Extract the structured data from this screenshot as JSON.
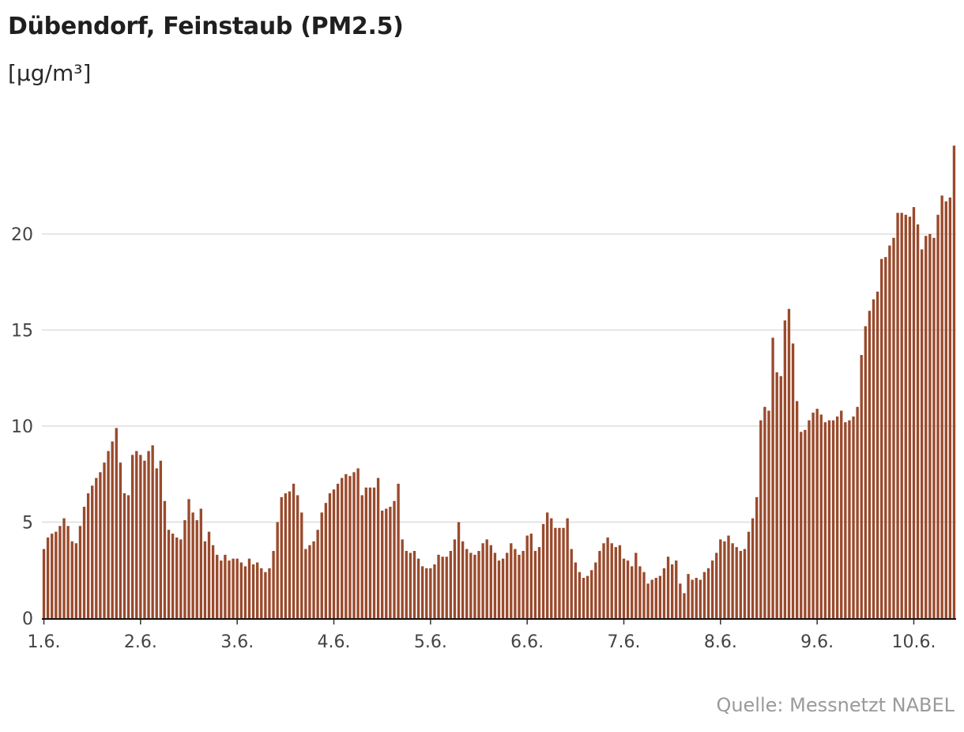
{
  "chart_data": {
    "type": "bar",
    "title": "Dübendorf, Feinstaub (PM2.5)",
    "ylabel": "[µg/m³]",
    "source": "Quelle: Messnetzt NABEL",
    "color": "#9a4a2c",
    "gridlines": true,
    "ylim": [
      0,
      24.5
    ],
    "yticks": [
      0,
      5,
      10,
      15,
      20
    ],
    "x_tick_labels": [
      "1.6.",
      "2.6.",
      "3.6.",
      "4.6.",
      "5.6.",
      "6.6.",
      "7.6.",
      "8.6.",
      "9.6.",
      "10.6."
    ],
    "bars_per_day": 24,
    "values": [
      3.6,
      4.2,
      4.4,
      4.5,
      4.8,
      5.2,
      4.8,
      4.0,
      3.9,
      4.8,
      5.8,
      6.5,
      6.9,
      7.3,
      7.6,
      8.1,
      8.7,
      9.2,
      9.9,
      8.1,
      6.5,
      6.4,
      8.5,
      8.7,
      8.5,
      8.2,
      8.7,
      9.0,
      7.8,
      8.2,
      6.1,
      4.6,
      4.4,
      4.2,
      4.1,
      5.1,
      6.2,
      5.5,
      5.1,
      5.7,
      4.0,
      4.5,
      3.8,
      3.3,
      3.0,
      3.3,
      3.0,
      3.1,
      3.1,
      2.9,
      2.7,
      3.1,
      2.8,
      2.9,
      2.6,
      2.4,
      2.6,
      3.5,
      5.0,
      6.3,
      6.5,
      6.6,
      7.0,
      6.4,
      5.5,
      3.6,
      3.8,
      4.0,
      4.6,
      5.5,
      6.0,
      6.5,
      6.7,
      7.0,
      7.3,
      7.5,
      7.4,
      7.6,
      7.8,
      6.4,
      6.8,
      6.8,
      6.8,
      7.3,
      5.6,
      5.7,
      5.8,
      6.1,
      7.0,
      4.1,
      3.5,
      3.4,
      3.5,
      3.1,
      2.7,
      2.6,
      2.6,
      2.8,
      3.3,
      3.2,
      3.2,
      3.5,
      4.1,
      5.0,
      4.0,
      3.6,
      3.4,
      3.3,
      3.5,
      3.9,
      4.1,
      3.8,
      3.4,
      3.0,
      3.1,
      3.4,
      3.9,
      3.6,
      3.3,
      3.5,
      4.3,
      4.4,
      3.5,
      3.7,
      4.9,
      5.5,
      5.2,
      4.7,
      4.7,
      4.7,
      5.2,
      3.6,
      2.9,
      2.4,
      2.1,
      2.2,
      2.5,
      2.9,
      3.5,
      3.9,
      4.2,
      3.9,
      3.7,
      3.8,
      3.1,
      3.0,
      2.7,
      3.4,
      2.7,
      2.4,
      1.8,
      2.0,
      2.1,
      2.2,
      2.6,
      3.2,
      2.8,
      3.0,
      1.8,
      1.3,
      2.3,
      2.0,
      2.1,
      2.0,
      2.4,
      2.6,
      3.0,
      3.4,
      4.1,
      4.0,
      4.3,
      3.9,
      3.7,
      3.5,
      3.6,
      4.5,
      5.2,
      6.3,
      10.3,
      11.0,
      10.8,
      14.6,
      12.8,
      12.6,
      15.5,
      16.1,
      14.3,
      11.3,
      9.7,
      9.8,
      10.3,
      10.7,
      10.9,
      10.6,
      10.2,
      10.3,
      10.3,
      10.5,
      10.8,
      10.2,
      10.3,
      10.5,
      11.0,
      13.7,
      15.2,
      16.0,
      16.6,
      17.0,
      18.7,
      18.8,
      19.4,
      19.8,
      21.1,
      21.1,
      21.0,
      20.9,
      21.4,
      20.5,
      19.2,
      19.9,
      20.0,
      19.8,
      21.0,
      22.0,
      21.7,
      21.9,
      24.6
    ]
  }
}
